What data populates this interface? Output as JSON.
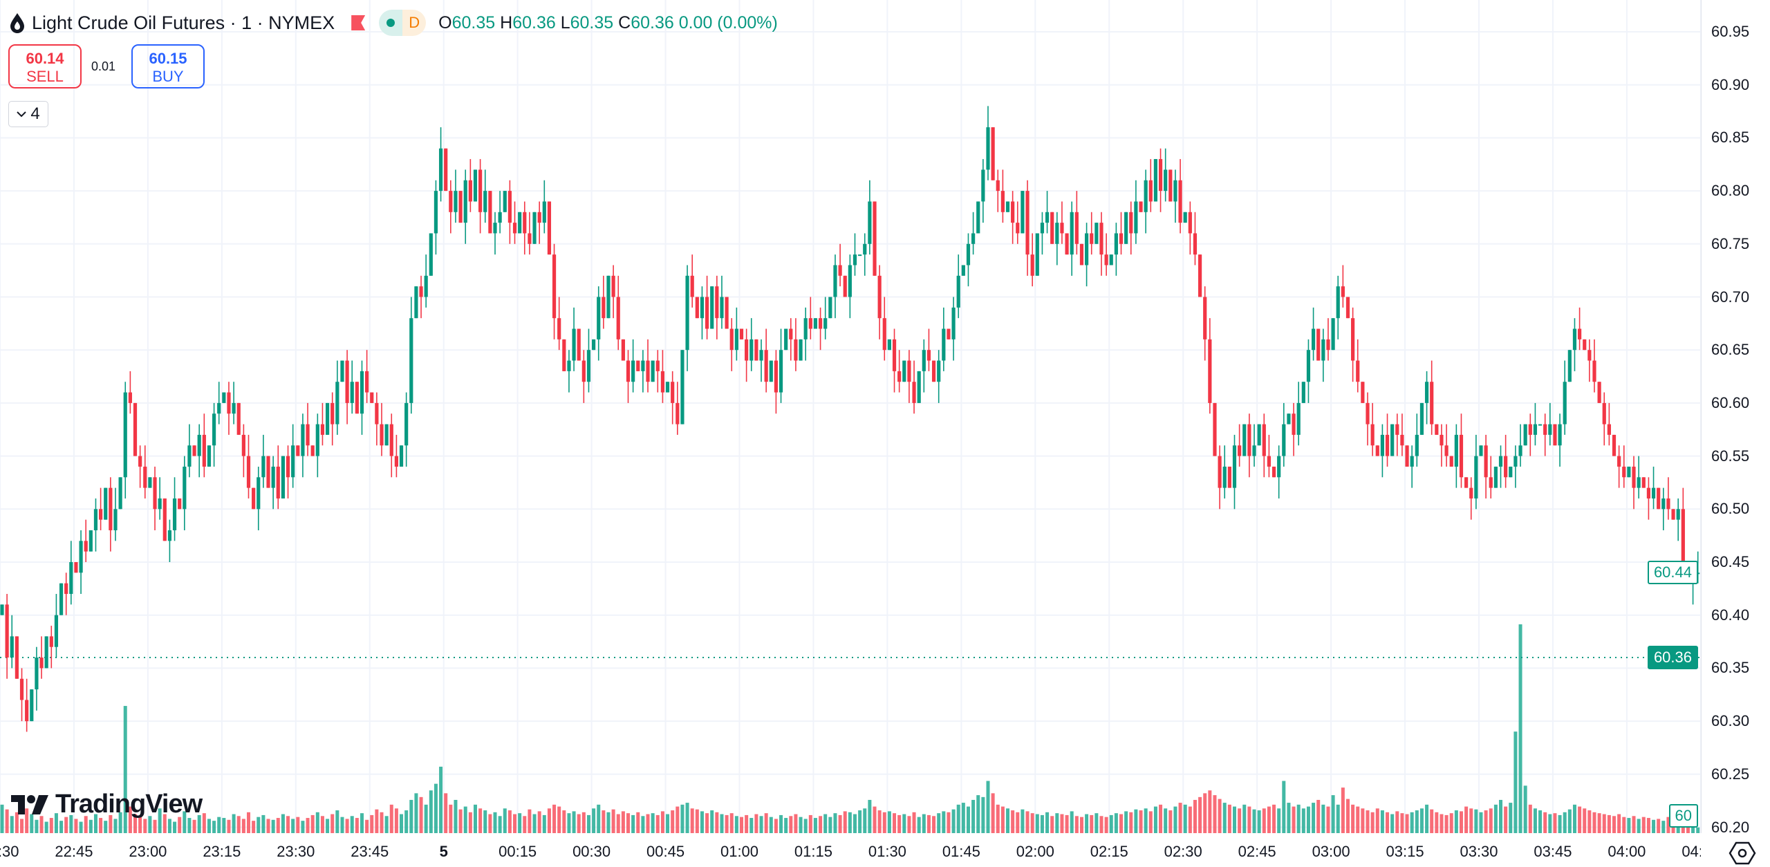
{
  "header": {
    "title": "Light Crude Oil Futures · 1 · NYMEX",
    "status_badge": "D",
    "ohlc": {
      "o_label": "O",
      "o": "60.35",
      "h_label": "H",
      "h": "60.36",
      "l_label": "L",
      "l": "60.35",
      "c_label": "C",
      "c": "60.36",
      "change": "0.00 (0.00%)"
    }
  },
  "trade": {
    "sell_price": "60.14",
    "sell_label": "SELL",
    "spread": "0.01",
    "buy_price": "60.15",
    "buy_label": "BUY"
  },
  "indicators": {
    "count": "4"
  },
  "logo": "TradingView",
  "colors": {
    "up": "#089981",
    "down": "#f23645",
    "vol_up": "#22ab94",
    "vol_down": "#f7525f",
    "grid": "#f0f3fa"
  },
  "price_axis": {
    "ticks": [
      "60.95",
      "60.90",
      "60.85",
      "60.80",
      "60.75",
      "60.70",
      "60.65",
      "60.60",
      "60.55",
      "60.50",
      "60.45",
      "60.40",
      "60.35",
      "60.30",
      "60.25",
      "60.20"
    ],
    "last_price": "60.44",
    "current_line": "60.36",
    "volume_label": "60"
  },
  "time_axis": {
    "ticks": [
      "22:30",
      "22:45",
      "23:00",
      "23:15",
      "23:30",
      "23:45",
      "5",
      "00:15",
      "00:30",
      "00:45",
      "01:00",
      "01:15",
      "01:30",
      "01:45",
      "02:00",
      "02:15",
      "02:30",
      "02:45",
      "03:00",
      "03:15",
      "03:30",
      "03:45",
      "04:00",
      "04:15"
    ]
  },
  "chart_data": {
    "type": "candlestick",
    "interval": "1 minute",
    "start_time": "22:30",
    "ylim": [
      60.2,
      60.95
    ],
    "grid": true,
    "open_first": 60.4,
    "close": [
      60.41,
      60.36,
      60.38,
      60.34,
      60.32,
      60.3,
      60.33,
      60.36,
      60.35,
      60.38,
      60.37,
      60.4,
      60.43,
      60.42,
      60.45,
      60.44,
      60.47,
      60.46,
      60.48,
      60.5,
      60.49,
      60.52,
      60.48,
      60.5,
      60.53,
      60.61,
      60.6,
      60.55,
      60.54,
      60.52,
      60.53,
      60.5,
      60.51,
      60.47,
      60.48,
      60.51,
      60.5,
      60.54,
      60.56,
      60.55,
      60.57,
      60.54,
      60.56,
      60.59,
      60.6,
      60.61,
      60.59,
      60.6,
      60.57,
      60.55,
      60.52,
      60.5,
      60.53,
      60.55,
      60.52,
      60.54,
      60.51,
      60.55,
      60.53,
      60.56,
      60.55,
      60.58,
      60.56,
      60.55,
      60.58,
      60.57,
      60.6,
      60.58,
      60.62,
      60.64,
      60.6,
      60.62,
      60.59,
      60.63,
      60.61,
      60.6,
      60.58,
      60.56,
      60.58,
      60.55,
      60.54,
      60.56,
      60.6,
      60.68,
      60.71,
      60.7,
      60.72,
      60.76,
      60.8,
      60.84,
      60.8,
      60.78,
      60.8,
      60.77,
      60.81,
      60.79,
      60.82,
      60.78,
      60.8,
      60.76,
      60.77,
      60.78,
      60.8,
      60.77,
      60.76,
      60.78,
      60.76,
      60.75,
      60.78,
      60.77,
      60.79,
      60.74,
      60.68,
      60.66,
      60.63,
      60.64,
      60.67,
      60.64,
      60.62,
      60.65,
      60.66,
      60.7,
      60.68,
      60.72,
      60.7,
      60.66,
      60.64,
      60.62,
      60.64,
      60.63,
      60.64,
      60.62,
      60.64,
      60.63,
      60.61,
      60.62,
      60.6,
      60.58,
      60.65,
      60.72,
      60.7,
      60.68,
      60.7,
      60.67,
      60.71,
      60.68,
      60.7,
      60.67,
      60.65,
      60.67,
      60.66,
      60.64,
      60.66,
      60.64,
      60.65,
      60.62,
      60.64,
      60.61,
      60.65,
      60.67,
      60.66,
      60.64,
      60.66,
      60.68,
      60.67,
      60.68,
      60.67,
      60.68,
      60.7,
      60.73,
      60.72,
      60.7,
      60.73,
      60.74,
      60.74,
      60.75,
      60.79,
      60.72,
      60.68,
      60.65,
      60.66,
      60.63,
      60.62,
      60.64,
      60.62,
      60.6,
      60.63,
      60.65,
      60.64,
      60.62,
      60.64,
      60.67,
      60.66,
      60.69,
      60.72,
      60.73,
      60.75,
      60.76,
      60.79,
      60.82,
      60.86,
      60.81,
      60.8,
      60.78,
      60.79,
      60.77,
      60.76,
      60.8,
      60.74,
      60.72,
      60.76,
      60.77,
      60.78,
      60.75,
      60.77,
      60.76,
      60.74,
      60.78,
      60.75,
      60.73,
      60.76,
      60.75,
      60.77,
      60.74,
      60.73,
      60.74,
      60.76,
      60.75,
      60.78,
      60.76,
      60.79,
      60.78,
      60.81,
      60.79,
      60.83,
      60.8,
      60.82,
      60.79,
      60.81,
      60.77,
      60.78,
      60.76,
      60.74,
      60.7,
      60.66,
      60.6,
      60.55,
      60.52,
      60.54,
      60.52,
      60.56,
      60.55,
      60.58,
      60.55,
      60.56,
      60.58,
      60.55,
      60.54,
      60.53,
      60.55,
      60.58,
      60.59,
      60.57,
      60.6,
      60.62,
      60.65,
      60.67,
      60.64,
      60.66,
      60.65,
      60.68,
      60.71,
      60.7,
      60.68,
      60.64,
      60.62,
      60.6,
      60.58,
      60.56,
      60.55,
      60.57,
      60.55,
      60.58,
      60.57,
      60.56,
      60.54,
      60.55,
      60.57,
      60.6,
      60.62,
      60.58,
      60.57,
      60.56,
      60.55,
      60.54,
      60.57,
      60.53,
      60.52,
      60.51,
      60.55,
      60.56,
      60.53,
      60.52,
      60.54,
      60.55,
      60.53,
      60.54,
      60.55,
      60.56,
      60.58,
      60.57,
      60.58,
      60.58,
      60.57,
      60.58,
      60.56,
      60.58,
      60.62,
      60.65,
      60.67,
      60.66,
      60.65,
      60.64,
      60.62,
      60.6,
      60.58,
      60.57,
      60.55,
      60.54,
      60.53,
      60.54,
      60.52,
      60.53,
      60.52,
      60.51,
      60.52,
      60.5,
      60.51,
      60.5,
      60.49,
      60.5,
      60.44,
      60.43,
      60.44,
      60.44
    ],
    "volume": [
      300,
      250,
      180,
      220,
      150,
      260,
      200,
      140,
      180,
      120,
      160,
      210,
      130,
      170,
      190,
      150,
      120,
      180,
      140,
      200,
      160,
      130,
      190,
      150,
      220,
      1340,
      280,
      200,
      170,
      150,
      180,
      140,
      260,
      200,
      150,
      120,
      170,
      230,
      160,
      140,
      190,
      210,
      150,
      130,
      170,
      160,
      140,
      200,
      180,
      150,
      220,
      130,
      170,
      190,
      150,
      140,
      160,
      200,
      180,
      150,
      170,
      130,
      160,
      190,
      220,
      180,
      150,
      200,
      240,
      170,
      150,
      180,
      160,
      210,
      140,
      190,
      250,
      220,
      180,
      300,
      260,
      200,
      240,
      350,
      420,
      380,
      300,
      450,
      520,
      700,
      420,
      300,
      350,
      250,
      280,
      220,
      300,
      260,
      240,
      200,
      220,
      180,
      260,
      240,
      200,
      210,
      180,
      250,
      200,
      230,
      190,
      260,
      300,
      280,
      240,
      210,
      230,
      200,
      220,
      190,
      260,
      300,
      240,
      220,
      250,
      200,
      230,
      210,
      190,
      220,
      180,
      200,
      210,
      190,
      230,
      200,
      240,
      280,
      300,
      320,
      260,
      250,
      230,
      210,
      240,
      220,
      200,
      190,
      210,
      180,
      170,
      190,
      160,
      200,
      180,
      210,
      170,
      150,
      190,
      160,
      180,
      200,
      170,
      150,
      190,
      160,
      180,
      200,
      170,
      210,
      190,
      230,
      220,
      200,
      240,
      260,
      350,
      280,
      240,
      220,
      230,
      210,
      190,
      200,
      180,
      220,
      170,
      200,
      190,
      180,
      210,
      230,
      220,
      250,
      300,
      320,
      280,
      350,
      400,
      380,
      550,
      420,
      300,
      280,
      260,
      240,
      220,
      250,
      230,
      210,
      200,
      190,
      220,
      180,
      210,
      200,
      190,
      230,
      180,
      170,
      200,
      190,
      210,
      180,
      170,
      190,
      210,
      200,
      230,
      220,
      250,
      240,
      260,
      230,
      280,
      300,
      260,
      240,
      280,
      320,
      300,
      280,
      350,
      380,
      420,
      450,
      400,
      360,
      320,
      300,
      280,
      260,
      300,
      280,
      250,
      240,
      260,
      280,
      300,
      260,
      550,
      320,
      280,
      300,
      260,
      280,
      320,
      350,
      300,
      280,
      400,
      300,
      480,
      360,
      300,
      280,
      260,
      240,
      220,
      260,
      240,
      220,
      200,
      230,
      210,
      200,
      220,
      240,
      260,
      300,
      250,
      220,
      200,
      190,
      210,
      240,
      230,
      280,
      260,
      250,
      220,
      240,
      260,
      300,
      350,
      280,
      320,
      1070,
      2200,
      500,
      300,
      260,
      240,
      220,
      200,
      210,
      190,
      220,
      250,
      300,
      280,
      260,
      240,
      220,
      210,
      200,
      190,
      180,
      200,
      170,
      160,
      180,
      150,
      170,
      160,
      140,
      150,
      130,
      170,
      200,
      250,
      280,
      220,
      190,
      60
    ],
    "last_price": 60.44,
    "current_line": 60.36
  }
}
